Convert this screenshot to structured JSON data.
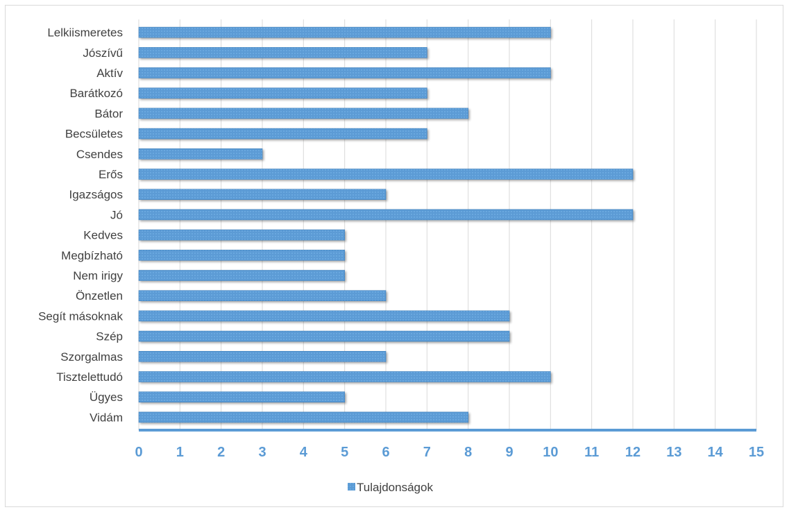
{
  "chart_data": {
    "type": "bar",
    "orientation": "horizontal",
    "categories": [
      "Lelkiismeretes",
      "Jószívű",
      "Aktív",
      "Barátkozó",
      "Bátor",
      "Becsületes",
      "Csendes",
      "Erős",
      "Igazságos",
      "Jó",
      "Kedves",
      "Megbízható",
      "Nem irigy",
      "Önzetlen",
      "Segít másoknak",
      "Szép",
      "Szorgalmas",
      "Tisztelettudó",
      "Ügyes",
      "Vidám"
    ],
    "series": [
      {
        "name": "Tulajdonságok",
        "values": [
          10,
          7,
          10,
          7,
          8,
          7,
          3,
          12,
          6,
          12,
          5,
          5,
          5,
          6,
          9,
          9,
          6,
          10,
          5,
          8
        ]
      }
    ],
    "xlim": [
      0,
      15
    ],
    "xticks": [
      "0",
      "1",
      "2",
      "3",
      "4",
      "5",
      "6",
      "7",
      "8",
      "9",
      "10",
      "11",
      "12",
      "13",
      "14",
      "15"
    ],
    "grid": true,
    "legend_position": "bottom",
    "colors": {
      "bar": "#5b9bd5",
      "bar_edge": "#2e75b6",
      "axis": "#5b9bd5",
      "grid": "#d9d9d9"
    }
  }
}
